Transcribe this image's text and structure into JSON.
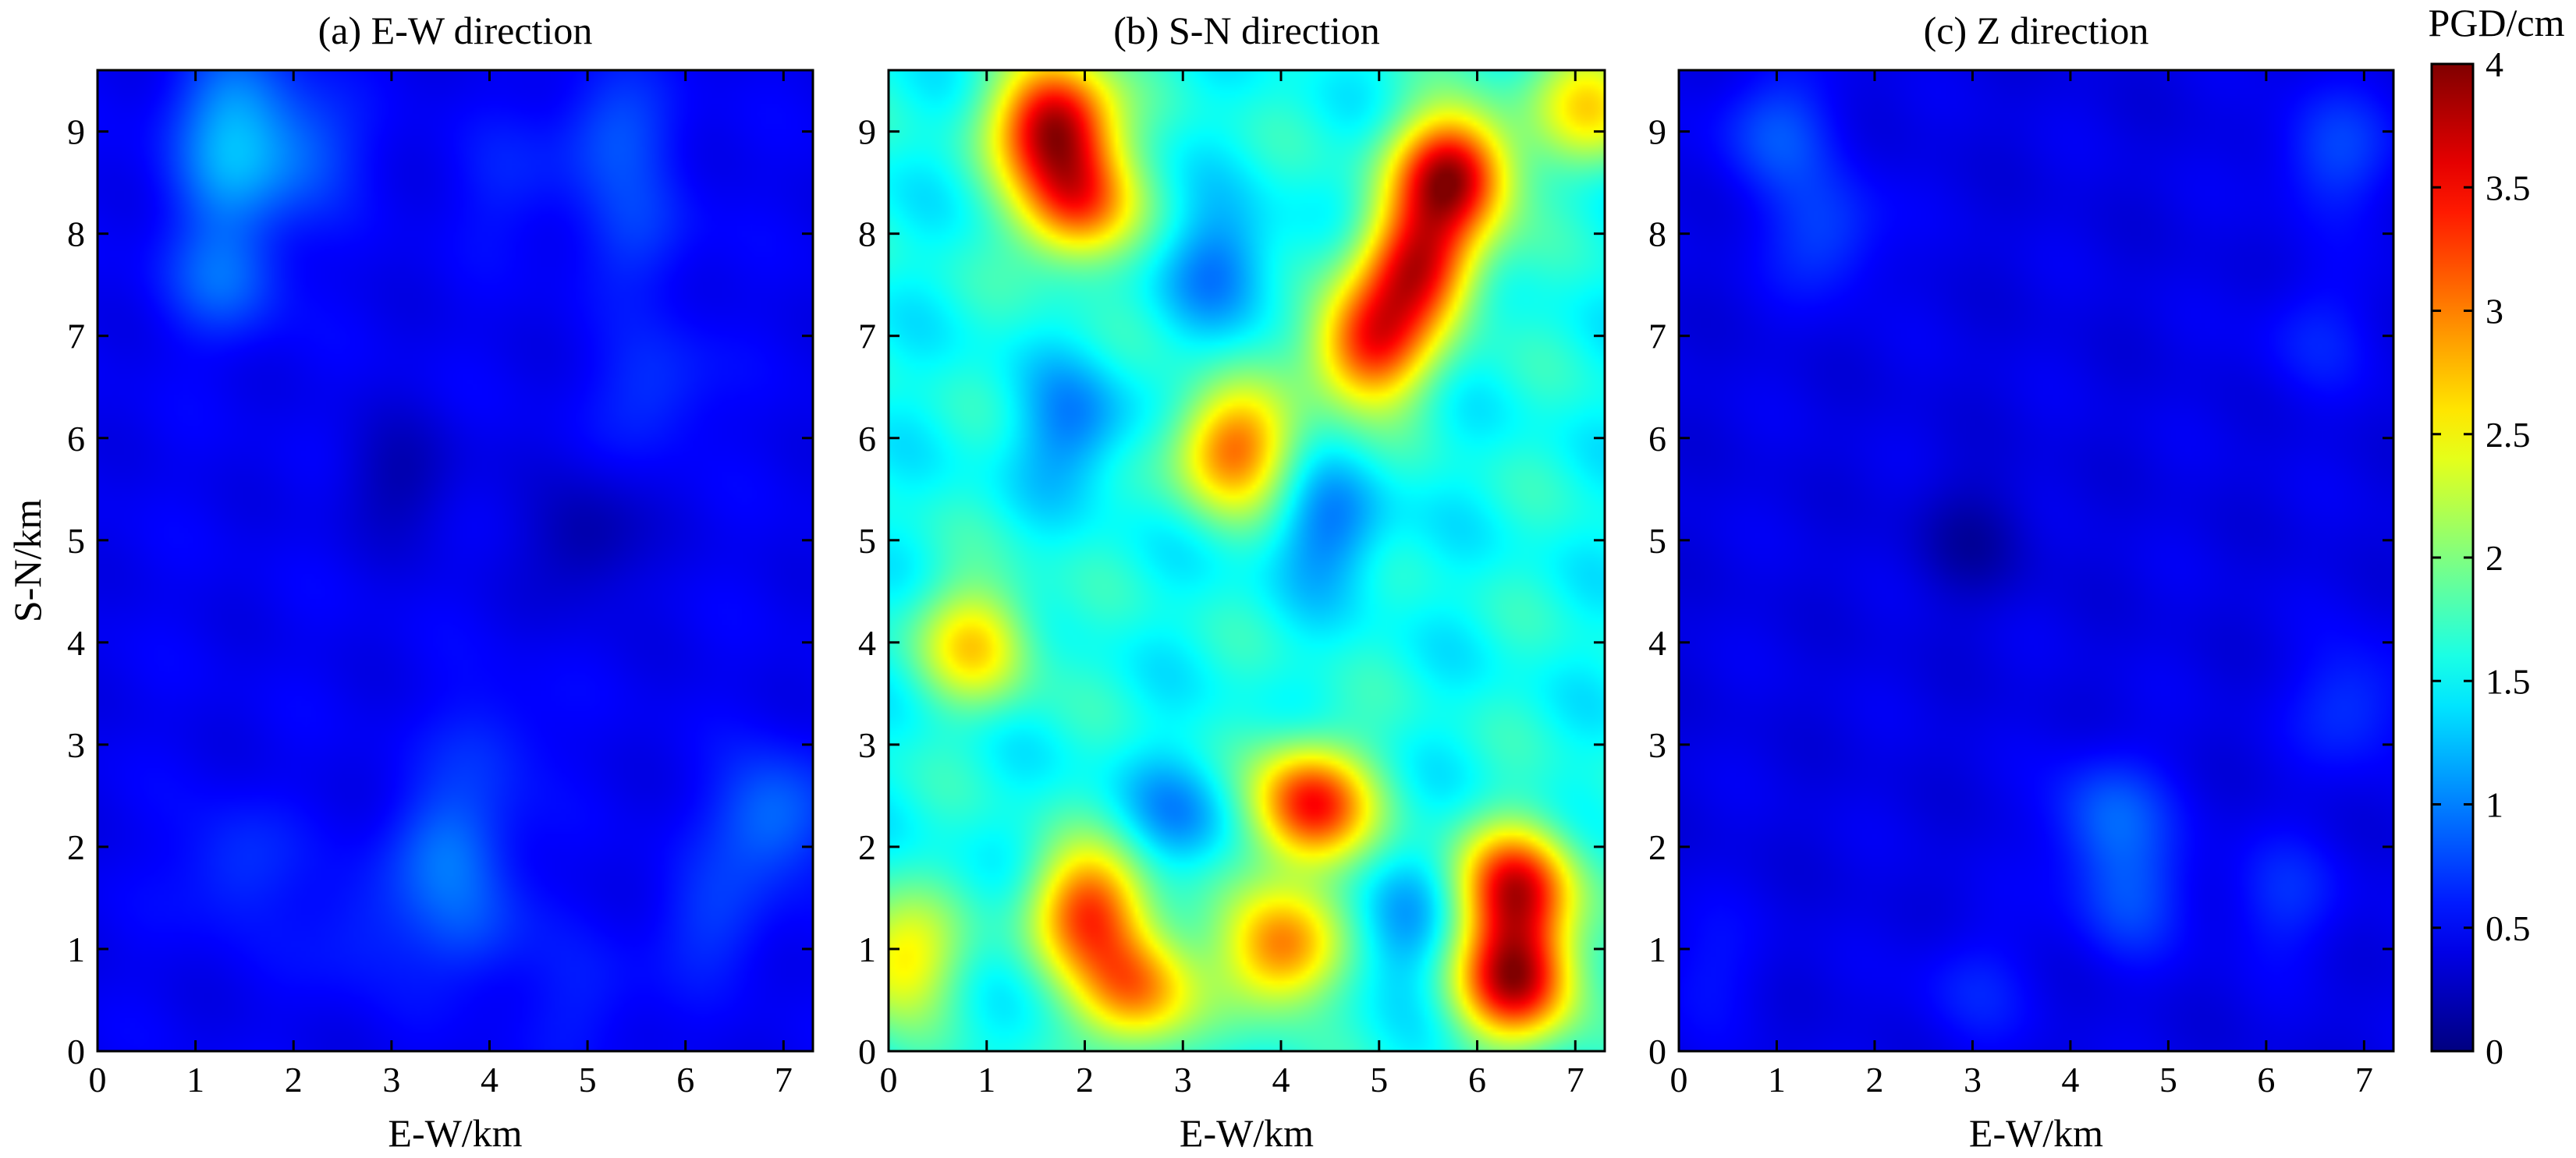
{
  "chart_data": [
    {
      "type": "heatmap",
      "title": "(a) E-W direction",
      "xlabel": "E-W/km",
      "ylabel": "S-N/km",
      "xlim": [
        0,
        7.3
      ],
      "ylim": [
        0,
        9.6
      ],
      "x_ticks": [
        "0",
        "1",
        "2",
        "3",
        "4",
        "5",
        "6",
        "7"
      ],
      "y_ticks": [
        "0",
        "1",
        "2",
        "3",
        "4",
        "5",
        "6",
        "7",
        "8",
        "9"
      ],
      "background_value": 0.45,
      "features": [
        {
          "x": 1.4,
          "y": 9.3,
          "value": 0.95
        },
        {
          "x": 1.35,
          "y": 8.6,
          "value": 0.95
        },
        {
          "x": 1.3,
          "y": 7.6,
          "value": 0.9
        },
        {
          "x": 2.1,
          "y": 8.8,
          "value": 0.8
        },
        {
          "x": 5.3,
          "y": 9.0,
          "value": 0.8
        },
        {
          "x": 5.5,
          "y": 8.0,
          "value": 0.7
        },
        {
          "x": 5.7,
          "y": 6.5,
          "value": 0.7
        },
        {
          "x": 4.2,
          "y": 8.5,
          "value": 0.6
        },
        {
          "x": 3.1,
          "y": 5.6,
          "value": 0.2
        },
        {
          "x": 5.0,
          "y": 5.0,
          "value": 0.15
        },
        {
          "x": 3.6,
          "y": 2.0,
          "value": 0.9
        },
        {
          "x": 3.8,
          "y": 1.2,
          "value": 0.75
        },
        {
          "x": 6.9,
          "y": 2.3,
          "value": 0.95
        },
        {
          "x": 6.3,
          "y": 1.3,
          "value": 0.7
        },
        {
          "x": 1.4,
          "y": 1.8,
          "value": 0.7
        },
        {
          "x": 2.7,
          "y": 1.2,
          "value": 0.65
        },
        {
          "x": 4.0,
          "y": 3.0,
          "value": 0.65
        },
        {
          "x": 5.0,
          "y": 0.5,
          "value": 0.6
        }
      ]
    },
    {
      "type": "heatmap",
      "title": "(b) S-N direction",
      "xlabel": "E-W/km",
      "ylabel": "",
      "xlim": [
        0,
        7.3
      ],
      "ylim": [
        0,
        9.6
      ],
      "x_ticks": [
        "0",
        "1",
        "2",
        "3",
        "4",
        "5",
        "6",
        "7"
      ],
      "y_ticks": [
        "0",
        "1",
        "2",
        "3",
        "4",
        "5",
        "6",
        "7",
        "8",
        "9"
      ],
      "background_value": 1.55,
      "features": [
        {
          "x": 1.7,
          "y": 9.1,
          "value": 3.8
        },
        {
          "x": 1.9,
          "y": 8.3,
          "value": 3.2
        },
        {
          "x": 5.75,
          "y": 8.6,
          "value": 3.8
        },
        {
          "x": 5.4,
          "y": 7.7,
          "value": 3.5
        },
        {
          "x": 4.9,
          "y": 6.9,
          "value": 3.4
        },
        {
          "x": 3.5,
          "y": 5.9,
          "value": 3.1
        },
        {
          "x": 0.9,
          "y": 4.0,
          "value": 2.6
        },
        {
          "x": 2.05,
          "y": 1.4,
          "value": 3.2
        },
        {
          "x": 2.5,
          "y": 0.6,
          "value": 3.0
        },
        {
          "x": 4.3,
          "y": 2.4,
          "value": 3.5
        },
        {
          "x": 4.0,
          "y": 1.0,
          "value": 3.1
        },
        {
          "x": 6.4,
          "y": 1.6,
          "value": 3.5
        },
        {
          "x": 6.4,
          "y": 0.7,
          "value": 3.7
        },
        {
          "x": 0.1,
          "y": 0.9,
          "value": 2.6
        },
        {
          "x": 7.2,
          "y": 9.3,
          "value": 2.6
        },
        {
          "x": 1.9,
          "y": 6.1,
          "value": 1.0
        },
        {
          "x": 3.4,
          "y": 7.7,
          "value": 1.0
        },
        {
          "x": 4.5,
          "y": 5.1,
          "value": 1.0
        },
        {
          "x": 3.0,
          "y": 2.3,
          "value": 1.1
        },
        {
          "x": 5.2,
          "y": 1.2,
          "value": 1.1
        }
      ]
    },
    {
      "type": "heatmap",
      "title": "(c) Z direction",
      "xlabel": "E-W/km",
      "ylabel": "",
      "xlim": [
        0,
        7.3
      ],
      "ylim": [
        0,
        9.6
      ],
      "x_ticks": [
        "0",
        "1",
        "2",
        "3",
        "4",
        "5",
        "6",
        "7"
      ],
      "y_ticks": [
        "0",
        "1",
        "2",
        "3",
        "4",
        "5",
        "6",
        "7",
        "8",
        "9"
      ],
      "background_value": 0.4,
      "features": [
        {
          "x": 1.0,
          "y": 9.0,
          "value": 0.8
        },
        {
          "x": 1.5,
          "y": 8.0,
          "value": 0.75
        },
        {
          "x": 6.7,
          "y": 8.8,
          "value": 0.75
        },
        {
          "x": 6.5,
          "y": 7.0,
          "value": 0.6
        },
        {
          "x": 3.0,
          "y": 5.0,
          "value": 0.15
        },
        {
          "x": 4.4,
          "y": 2.3,
          "value": 0.85
        },
        {
          "x": 4.6,
          "y": 1.5,
          "value": 0.75
        },
        {
          "x": 6.9,
          "y": 3.4,
          "value": 0.7
        },
        {
          "x": 3.0,
          "y": 0.6,
          "value": 0.6
        },
        {
          "x": 0.3,
          "y": 0.8,
          "value": 0.55
        },
        {
          "x": 6.2,
          "y": 1.5,
          "value": 0.65
        }
      ]
    }
  ],
  "colorbar": {
    "label": "PGD/cm",
    "range": [
      0,
      4
    ],
    "ticks": [
      "0",
      "0.5",
      "1",
      "1.5",
      "2",
      "2.5",
      "3",
      "3.5",
      "4"
    ],
    "colormap": "jet"
  }
}
